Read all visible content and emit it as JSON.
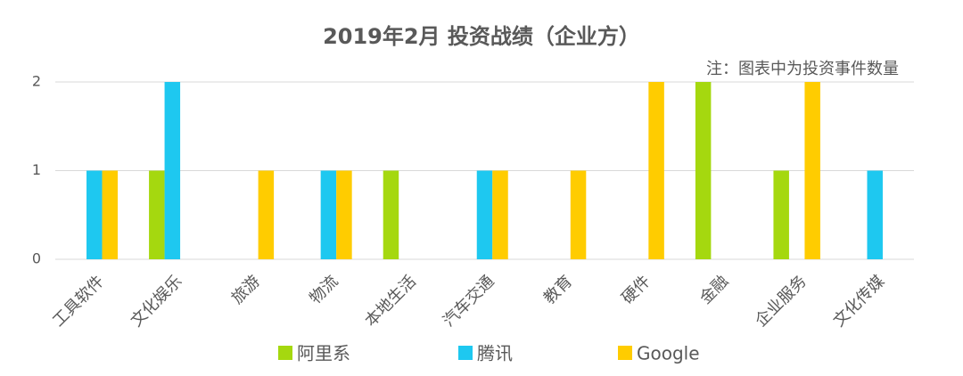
{
  "chart_data": {
    "type": "bar",
    "title": "2019年2月 投资战绩（企业方）",
    "annotation": "注：图表中为投资事件数量",
    "categories": [
      "工具软件",
      "文化娱乐",
      "旅游",
      "物流",
      "本地生活",
      "汽车交通",
      "教育",
      "硬件",
      "金融",
      "企业服务",
      "文化传媒"
    ],
    "series": [
      {
        "name": "阿里系",
        "color": "#a5d80f",
        "values": [
          0,
          1,
          0,
          0,
          1,
          0,
          0,
          0,
          2,
          1,
          0
        ]
      },
      {
        "name": "腾讯",
        "color": "#1ec8f0",
        "values": [
          1,
          2,
          0,
          1,
          0,
          1,
          0,
          0,
          0,
          0,
          1
        ]
      },
      {
        "name": "Google",
        "color": "#ffcc00",
        "values": [
          1,
          0,
          1,
          1,
          0,
          1,
          1,
          2,
          0,
          2,
          0
        ]
      }
    ],
    "ylim": [
      0,
      2
    ],
    "yticks": [
      0,
      1,
      2
    ],
    "grid": true
  }
}
